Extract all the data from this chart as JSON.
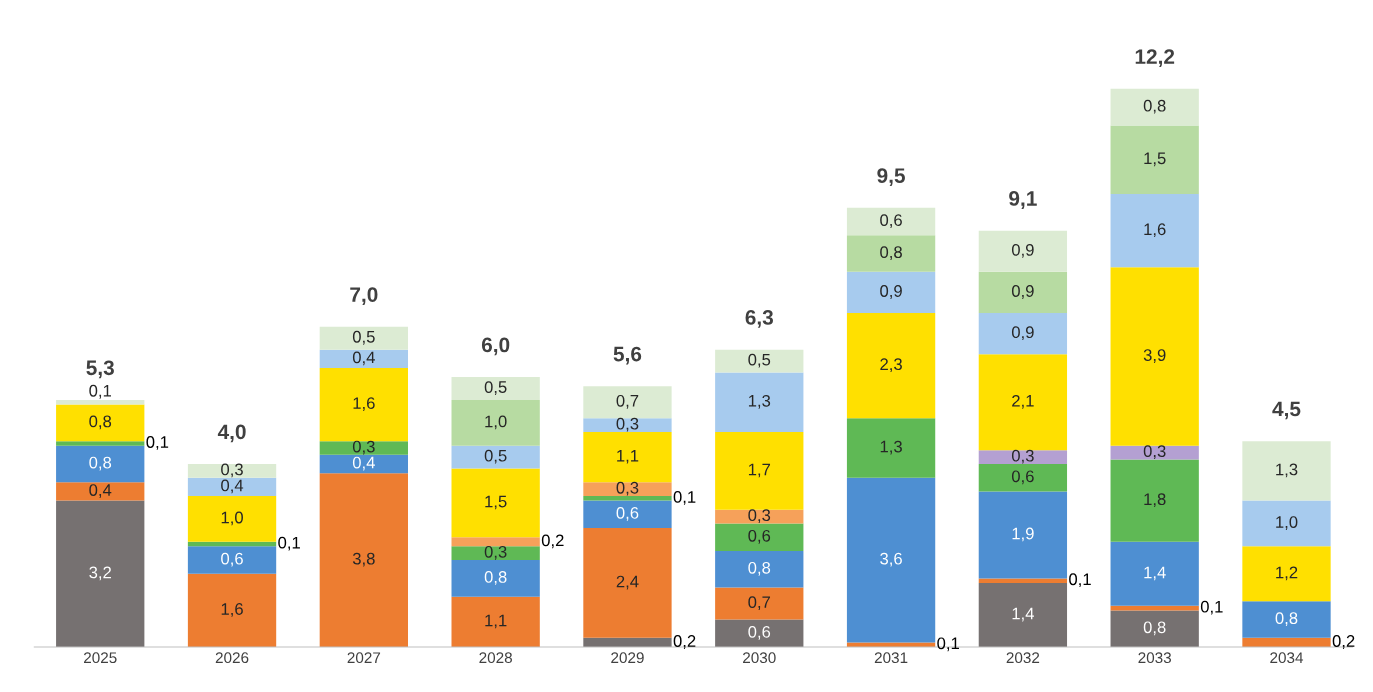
{
  "chart_data": {
    "type": "bar",
    "stacked": true,
    "tick_labels": "x",
    "grid": false,
    "legend": false,
    "categories": [
      "2025",
      "2026",
      "2027",
      "2028",
      "2029",
      "2030",
      "2031",
      "2032",
      "2033",
      "2034"
    ],
    "series": [
      {
        "color": "#767171",
        "values": [
          3.2,
          null,
          null,
          null,
          0.2,
          0.6,
          null,
          1.4,
          0.8,
          null
        ],
        "value_labels": [
          "3,2",
          null,
          null,
          null,
          "0,2",
          "0,6",
          null,
          "1,4",
          "0,8",
          null
        ]
      },
      {
        "color": "#ED7D31",
        "values": [
          0.4,
          1.6,
          3.8,
          1.1,
          2.4,
          0.7,
          0.1,
          0.1,
          0.1,
          0.2
        ],
        "value_labels": [
          "0,4",
          "1,6",
          "3,8",
          "1,1",
          "2,4",
          "0,7",
          "0,1",
          "0,1",
          "0,1",
          "0,2"
        ]
      },
      {
        "color": "#4E8FD2",
        "values": [
          0.8,
          0.6,
          0.4,
          0.8,
          0.6,
          0.8,
          3.6,
          1.9,
          1.4,
          0.8
        ],
        "value_labels": [
          "0,8",
          "0,6",
          "0,4",
          "0,8",
          "0,6",
          "0,8",
          "3,6",
          "1,9",
          "1,4",
          "0,8"
        ]
      },
      {
        "color": "#5FB955",
        "values": [
          0.1,
          0.1,
          0.3,
          0.3,
          0.1,
          0.6,
          1.3,
          0.6,
          1.8,
          null
        ],
        "value_labels": [
          "0,1",
          "0,1",
          "0,3",
          "0,3",
          "0,1",
          "0,6",
          "1,3",
          "0,6",
          "1,8",
          null
        ]
      },
      {
        "color": "#B4A0D2",
        "values": [
          null,
          null,
          null,
          null,
          null,
          null,
          null,
          0.3,
          0.3,
          null
        ],
        "value_labels": [
          null,
          null,
          null,
          null,
          null,
          null,
          null,
          "0,3",
          "0,3",
          null
        ]
      },
      {
        "color": "#F6A15A",
        "values": [
          null,
          null,
          null,
          0.2,
          0.3,
          0.3,
          null,
          null,
          null,
          null
        ],
        "value_labels": [
          null,
          null,
          null,
          "0,2",
          "0,3",
          "0,3",
          null,
          null,
          null,
          null
        ]
      },
      {
        "color": "#FFE000",
        "values": [
          0.8,
          1.0,
          1.6,
          1.5,
          1.1,
          1.7,
          2.3,
          2.1,
          3.9,
          1.2
        ],
        "value_labels": [
          "0,8",
          "1,0",
          "1,6",
          "1,5",
          "1,1",
          "1,7",
          "2,3",
          "2,1",
          "3,9",
          "1,2"
        ]
      },
      {
        "color": "#A7CBEE",
        "values": [
          null,
          0.4,
          0.4,
          0.5,
          0.3,
          1.3,
          0.9,
          0.9,
          1.6,
          1.0
        ],
        "value_labels": [
          null,
          "0,4",
          "0,4",
          "0,5",
          "0,3",
          "1,3",
          "0,9",
          "0,9",
          "1,6",
          "1,0"
        ]
      },
      {
        "color": "#B7DBA2",
        "values": [
          null,
          null,
          null,
          1.0,
          null,
          null,
          0.8,
          0.9,
          1.5,
          null
        ],
        "value_labels": [
          null,
          null,
          null,
          "1,0",
          null,
          null,
          "0,8",
          "0,9",
          "1,5",
          null
        ]
      },
      {
        "color": "#DCEBD3",
        "values": [
          0.1,
          0.3,
          0.5,
          0.5,
          0.7,
          0.5,
          0.6,
          0.9,
          0.8,
          1.3
        ],
        "value_labels": [
          "0,1",
          "0,3",
          "0,5",
          "0,5",
          "0,7",
          "0,5",
          "0,6",
          "0,9",
          "0,8",
          "1,3"
        ]
      }
    ],
    "totals": [
      "5,3",
      "4,0",
      "7,0",
      "6,0",
      "5,6",
      "6,3",
      "9,5",
      "9,1",
      "12,2",
      "4,5"
    ]
  }
}
